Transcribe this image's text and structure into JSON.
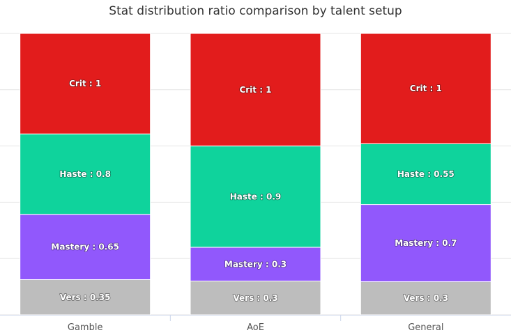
{
  "chart_data": {
    "type": "bar",
    "stacked": "percent",
    "title": "Stat distribution ratio comparison by talent setup",
    "xlabel": "",
    "ylabel": "",
    "categories": [
      "Gamble",
      "AoE",
      "General"
    ],
    "series": [
      {
        "name": "Crit",
        "color": "#e21c1c",
        "values": [
          1,
          1,
          1
        ]
      },
      {
        "name": "Haste",
        "color": "#0fd39c",
        "values": [
          0.8,
          0.9,
          0.55
        ]
      },
      {
        "name": "Mastery",
        "color": "#9158fc",
        "values": [
          0.65,
          0.3,
          0.7
        ]
      },
      {
        "name": "Vers",
        "color": "#bdbdbd",
        "values": [
          0.35,
          0.3,
          0.3
        ]
      }
    ],
    "grid": true,
    "legend": "none"
  }
}
